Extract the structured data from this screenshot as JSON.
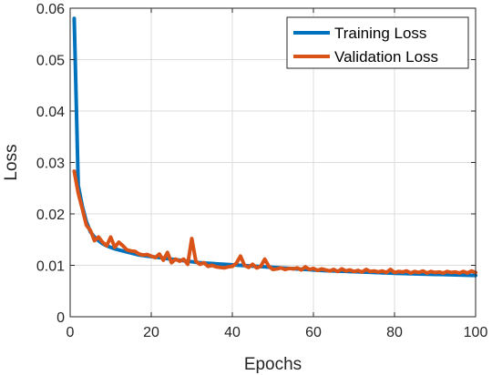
{
  "chart_data": {
    "type": "line",
    "title": "",
    "xlabel": "Epochs",
    "ylabel": "Loss",
    "xlim": [
      0,
      100
    ],
    "ylim": [
      0,
      0.06
    ],
    "xticks": [
      0,
      20,
      40,
      60,
      80,
      100
    ],
    "yticks": [
      0,
      0.01,
      0.02,
      0.03,
      0.04,
      0.05,
      0.06
    ],
    "xtick_labels": [
      "0",
      "20",
      "40",
      "60",
      "80",
      "100"
    ],
    "ytick_labels": [
      "0",
      "0.01",
      "0.02",
      "0.03",
      "0.04",
      "0.05",
      "0.06"
    ],
    "grid": true,
    "box": true,
    "legend_position": "top-right",
    "x": [
      1,
      2,
      3,
      4,
      5,
      6,
      7,
      8,
      9,
      10,
      11,
      12,
      13,
      14,
      15,
      16,
      17,
      18,
      19,
      20,
      21,
      22,
      23,
      24,
      25,
      26,
      27,
      28,
      29,
      30,
      31,
      32,
      33,
      34,
      35,
      36,
      37,
      38,
      39,
      40,
      41,
      42,
      43,
      44,
      45,
      46,
      47,
      48,
      49,
      50,
      51,
      52,
      53,
      54,
      55,
      56,
      57,
      58,
      59,
      60,
      61,
      62,
      63,
      64,
      65,
      66,
      67,
      68,
      69,
      70,
      71,
      72,
      73,
      74,
      75,
      76,
      77,
      78,
      79,
      80,
      81,
      82,
      83,
      84,
      85,
      86,
      87,
      88,
      89,
      90,
      91,
      92,
      93,
      94,
      95,
      96,
      97,
      98,
      99,
      100
    ],
    "series": [
      {
        "name": "Training Loss",
        "color": "#0072BD",
        "values": [
          0.058,
          0.0255,
          0.0215,
          0.0185,
          0.0165,
          0.0155,
          0.0148,
          0.0142,
          0.0138,
          0.0135,
          0.0132,
          0.013,
          0.0128,
          0.0126,
          0.0124,
          0.0122,
          0.012,
          0.0119,
          0.0118,
          0.0117,
          0.0116,
          0.0115,
          0.0114,
          0.0113,
          0.0112,
          0.0111,
          0.011,
          0.0109,
          0.0108,
          0.0107,
          0.0106,
          0.0105,
          0.01045,
          0.0104,
          0.01035,
          0.0103,
          0.01025,
          0.0102,
          0.01015,
          0.0101,
          0.01005,
          0.01,
          0.00995,
          0.0099,
          0.00985,
          0.0098,
          0.00975,
          0.0097,
          0.00965,
          0.0096,
          0.00955,
          0.0095,
          0.00945,
          0.0094,
          0.00935,
          0.0093,
          0.00925,
          0.0092,
          0.00915,
          0.0091,
          0.00905,
          0.009,
          0.00897,
          0.00894,
          0.00891,
          0.00888,
          0.00885,
          0.00882,
          0.00879,
          0.00876,
          0.00873,
          0.0087,
          0.00867,
          0.00864,
          0.00861,
          0.00858,
          0.00855,
          0.00852,
          0.00849,
          0.00846,
          0.00843,
          0.0084,
          0.00838,
          0.00836,
          0.00834,
          0.00832,
          0.0083,
          0.00828,
          0.00826,
          0.00824,
          0.00822,
          0.0082,
          0.00818,
          0.00816,
          0.00814,
          0.00812,
          0.0081,
          0.00808,
          0.00806,
          0.00804
        ]
      },
      {
        "name": "Validation Loss",
        "color": "#D95319",
        "values": [
          0.0283,
          0.024,
          0.021,
          0.0178,
          0.0168,
          0.0148,
          0.0155,
          0.0145,
          0.0138,
          0.0155,
          0.0135,
          0.0145,
          0.0138,
          0.013,
          0.0128,
          0.0127,
          0.0122,
          0.012,
          0.0121,
          0.0118,
          0.0115,
          0.0122,
          0.011,
          0.0125,
          0.0105,
          0.0112,
          0.0108,
          0.0112,
          0.0102,
          0.0152,
          0.0108,
          0.0102,
          0.0105,
          0.0098,
          0.01,
          0.0097,
          0.0096,
          0.0095,
          0.0097,
          0.0098,
          0.0104,
          0.0118,
          0.01,
          0.0096,
          0.0102,
          0.0095,
          0.0098,
          0.0112,
          0.0098,
          0.0092,
          0.0093,
          0.0095,
          0.0092,
          0.0094,
          0.0093,
          0.0095,
          0.0091,
          0.0097,
          0.0092,
          0.0094,
          0.009,
          0.0093,
          0.0091,
          0.0089,
          0.0092,
          0.0088,
          0.0093,
          0.0089,
          0.0091,
          0.0088,
          0.009,
          0.0087,
          0.0092,
          0.0088,
          0.0089,
          0.0087,
          0.0089,
          0.0086,
          0.0092,
          0.0086,
          0.0088,
          0.0087,
          0.0089,
          0.0085,
          0.0088,
          0.0086,
          0.0089,
          0.0085,
          0.0088,
          0.0086,
          0.0087,
          0.0085,
          0.0088,
          0.0086,
          0.0087,
          0.0085,
          0.0088,
          0.0085,
          0.0089,
          0.0086
        ]
      }
    ]
  }
}
